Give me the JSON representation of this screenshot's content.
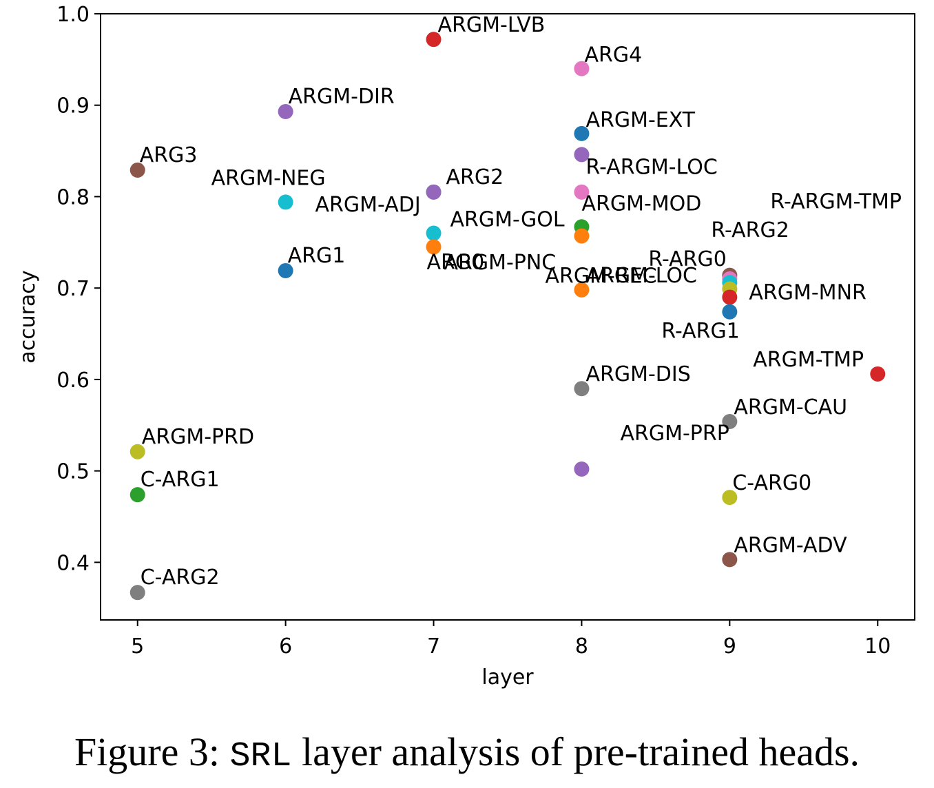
{
  "chart_data": {
    "type": "scatter",
    "xlabel": "layer",
    "ylabel": "accuracy",
    "xlim": [
      4.75,
      10.25
    ],
    "ylim": [
      0.337,
      1.0
    ],
    "x_ticks": [
      5,
      6,
      7,
      8,
      9,
      10
    ],
    "x_tick_labels": [
      "5",
      "6",
      "7",
      "8",
      "9",
      "10"
    ],
    "y_ticks": [
      0.4,
      0.5,
      0.6,
      0.7,
      0.8,
      0.9,
      1.0
    ],
    "y_tick_labels": [
      "0.4",
      "0.5",
      "0.6",
      "0.7",
      "0.8",
      "0.9",
      "1.0"
    ],
    "grid": false,
    "points": [
      {
        "label": "ARG3",
        "x": 5,
        "y": 0.829,
        "color": "#8c564b"
      },
      {
        "label": "ARGM-PRD",
        "x": 5,
        "y": 0.521,
        "color": "#bcbd22"
      },
      {
        "label": "C-ARG1",
        "x": 5,
        "y": 0.474,
        "color": "#2ca02c"
      },
      {
        "label": "C-ARG2",
        "x": 5,
        "y": 0.367,
        "color": "#7f7f7f"
      },
      {
        "label": "ARGM-DIR",
        "x": 6,
        "y": 0.893,
        "color": "#9467bd"
      },
      {
        "label": "ARGM-NEG",
        "x": 6,
        "y": 0.794,
        "color": "#17becf"
      },
      {
        "label": "ARG1",
        "x": 6,
        "y": 0.719,
        "color": "#1f77b4"
      },
      {
        "label": "ARGM-LVB",
        "x": 7,
        "y": 0.972,
        "color": "#d62728"
      },
      {
        "label": "ARG2",
        "x": 7,
        "y": 0.805,
        "color": "#2ca02c"
      },
      {
        "label": "ARGM-ADJ",
        "x": 7,
        "y": 0.805,
        "color": "#9467bd"
      },
      {
        "label": "ARGM-GOL",
        "x": 7,
        "y": 0.76,
        "color": "#17becf"
      },
      {
        "label": "ARG0",
        "x": 7,
        "y": 0.745,
        "color": "#ff7f0e"
      },
      {
        "label": "ARG4",
        "x": 8,
        "y": 0.94,
        "color": "#e377c2"
      },
      {
        "label": "ARGM-EXT",
        "x": 8,
        "y": 0.869,
        "color": "#1f77b4"
      },
      {
        "label": "R-ARGM-LOC",
        "x": 8,
        "y": 0.846,
        "color": "#9467bd"
      },
      {
        "label": "ARGM-MOD",
        "x": 8,
        "y": 0.767,
        "color": "#2ca02c"
      },
      {
        "label": "ARGM-PNC",
        "x": 8,
        "y": 0.805,
        "color": "#e377c2"
      },
      {
        "label": "ARGM-REC",
        "x": 8,
        "y": 0.757,
        "color": "#ff7f0e"
      },
      {
        "label": "ARGM-LOC",
        "x": 8,
        "y": 0.698,
        "color": "#ff7f0e"
      },
      {
        "label": "ARGM-DIS",
        "x": 8,
        "y": 0.59,
        "color": "#7f7f7f"
      },
      {
        "label": "ARGM-PRP",
        "x": 8,
        "y": 0.502,
        "color": "#9467bd"
      },
      {
        "label": "R-ARGM-TMP",
        "x": 9,
        "y": 0.714,
        "color": "#8c564b"
      },
      {
        "label": "R-ARG2",
        "x": 9,
        "y": 0.71,
        "color": "#e377c2"
      },
      {
        "label": "R-ARG0",
        "x": 9,
        "y": 0.706,
        "color": "#17becf"
      },
      {
        "label": "ARGM-MNR",
        "x": 9,
        "y": 0.699,
        "color": "#bcbd22"
      },
      {
        "label": "",
        "x": 9,
        "y": 0.69,
        "color": "#d62728"
      },
      {
        "label": "R-ARG1",
        "x": 9,
        "y": 0.674,
        "color": "#1f77b4"
      },
      {
        "label": "ARGM-CAU",
        "x": 9,
        "y": 0.554,
        "color": "#7f7f7f"
      },
      {
        "label": "C-ARG0",
        "x": 9,
        "y": 0.471,
        "color": "#bcbd22"
      },
      {
        "label": "ARGM-ADV",
        "x": 9,
        "y": 0.403,
        "color": "#8c564b"
      },
      {
        "label": "ARGM-TMP",
        "x": 10,
        "y": 0.606,
        "color": "#d62728"
      }
    ]
  },
  "caption": {
    "prefix": "Figure 3: ",
    "mono": "SRL",
    "suffix": " layer analysis of pre-trained heads."
  }
}
